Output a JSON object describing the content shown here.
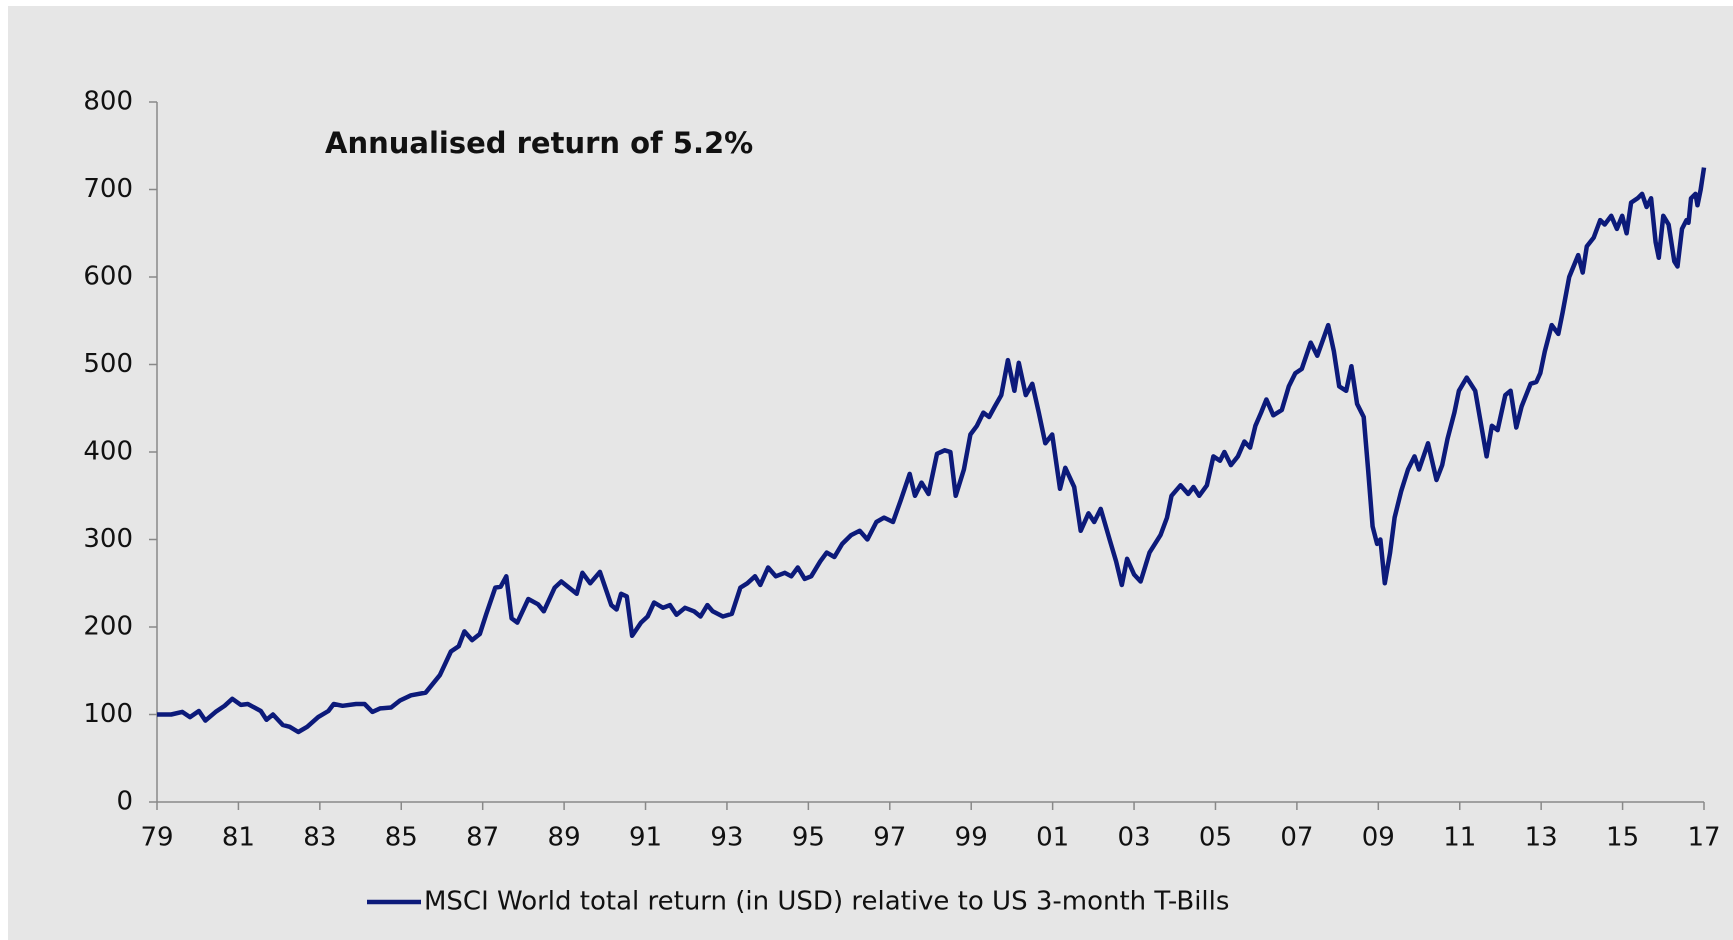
{
  "chart_data": {
    "type": "line",
    "annotation": "Annualised return of 5.2%",
    "x": [
      1979.0,
      1979.35,
      1979.62,
      1979.81,
      1980.03,
      1980.19,
      1980.44,
      1980.66,
      1980.85,
      1981.06,
      1981.23,
      1981.55,
      1981.69,
      1981.85,
      1982.09,
      1982.26,
      1982.47,
      1982.69,
      1982.96,
      1983.21,
      1983.34,
      1983.56,
      1983.89,
      1984.1,
      1984.29,
      1984.48,
      1984.75,
      1984.97,
      1985.24,
      1985.6,
      1985.95,
      1986.22,
      1986.41,
      1986.55,
      1986.74,
      1986.93,
      1987.09,
      1987.31,
      1987.44,
      1987.58,
      1987.71,
      1987.85,
      1988.12,
      1988.36,
      1988.5,
      1988.77,
      1988.93,
      1989.12,
      1989.31,
      1989.45,
      1989.64,
      1989.88,
      1990.16,
      1990.29,
      1990.4,
      1990.54,
      1990.67,
      1990.89,
      1991.05,
      1991.21,
      1991.43,
      1991.6,
      1991.76,
      1991.97,
      1992.19,
      1992.35,
      1992.52,
      1992.65,
      1992.9,
      1993.12,
      1993.33,
      1993.5,
      1993.69,
      1993.82,
      1994.01,
      1994.2,
      1994.42,
      1994.58,
      1994.74,
      1994.91,
      1995.07,
      1995.29,
      1995.45,
      1995.64,
      1995.83,
      1996.05,
      1996.26,
      1996.45,
      1996.67,
      1996.86,
      1997.08,
      1997.27,
      1997.49,
      1997.62,
      1997.78,
      1997.95,
      1998.16,
      1998.35,
      1998.49,
      1998.62,
      1998.82,
      1998.98,
      1999.14,
      1999.3,
      1999.44,
      1999.58,
      1999.74,
      1999.9,
      2000.06,
      2000.17,
      2000.34,
      2000.5,
      2000.66,
      2000.82,
      2000.99,
      2001.18,
      2001.31,
      2001.53,
      2001.69,
      2001.88,
      2002.02,
      2002.18,
      2002.4,
      2002.56,
      2002.7,
      2002.83,
      2003.0,
      2003.16,
      2003.38,
      2003.65,
      2003.81,
      2003.92,
      2004.14,
      2004.33,
      2004.46,
      2004.6,
      2004.79,
      2004.95,
      2005.11,
      2005.22,
      2005.38,
      2005.55,
      2005.71,
      2005.85,
      2005.98,
      2006.12,
      2006.25,
      2006.42,
      2006.63,
      2006.8,
      2006.96,
      2007.12,
      2007.34,
      2007.5,
      2007.77,
      2007.91,
      2008.04,
      2008.21,
      2008.34,
      2008.48,
      2008.64,
      2008.75,
      2008.86,
      2008.97,
      2009.05,
      2009.16,
      2009.29,
      2009.4,
      2009.56,
      2009.73,
      2009.89,
      2010.0,
      2010.22,
      2010.43,
      2010.57,
      2010.7,
      2010.87,
      2010.98,
      2011.17,
      2011.38,
      2011.66,
      2011.79,
      2011.93,
      2012.12,
      2012.25,
      2012.39,
      2012.52,
      2012.74,
      2012.88,
      2012.98,
      2013.09,
      2013.26,
      2013.42,
      2013.53,
      2013.69,
      2013.91,
      2014.02,
      2014.12,
      2014.29,
      2014.45,
      2014.56,
      2014.72,
      2014.86,
      2014.99,
      2015.1,
      2015.21,
      2015.37,
      2015.48,
      2015.59,
      2015.7,
      2015.81,
      2015.89,
      2016.0,
      2016.13,
      2016.27,
      2016.35,
      2016.46,
      2016.57,
      2016.62,
      2016.68,
      2016.79,
      2016.84,
      2016.92,
      2017.0
    ],
    "series": [
      {
        "name": "MSCI World total return (in USD) relative to US 3-month T-Bills",
        "color": "#0c1a7a",
        "values": [
          100,
          100,
          103,
          97,
          104,
          93,
          103,
          110,
          118,
          111,
          112,
          104,
          94,
          100,
          88,
          86,
          80,
          86,
          97,
          104,
          112,
          110,
          112,
          112,
          103,
          107,
          108,
          116,
          122,
          125,
          145,
          172,
          178,
          195,
          185,
          192,
          215,
          245,
          246,
          258,
          210,
          205,
          232,
          226,
          218,
          245,
          252,
          245,
          238,
          262,
          250,
          263,
          225,
          220,
          238,
          235,
          190,
          205,
          212,
          228,
          222,
          225,
          214,
          222,
          218,
          212,
          225,
          218,
          212,
          215,
          245,
          250,
          258,
          248,
          268,
          258,
          262,
          258,
          268,
          255,
          258,
          275,
          285,
          280,
          295,
          305,
          310,
          300,
          320,
          325,
          320,
          345,
          375,
          350,
          365,
          352,
          398,
          402,
          400,
          350,
          380,
          420,
          430,
          445,
          440,
          452,
          465,
          505,
          470,
          502,
          465,
          478,
          445,
          410,
          420,
          358,
          382,
          360,
          310,
          330,
          320,
          335,
          300,
          275,
          248,
          278,
          260,
          252,
          285,
          305,
          325,
          350,
          362,
          352,
          360,
          350,
          362,
          395,
          390,
          400,
          385,
          395,
          412,
          405,
          430,
          445,
          460,
          442,
          448,
          475,
          490,
          495,
          525,
          510,
          545,
          515,
          475,
          470,
          498,
          455,
          440,
          380,
          315,
          295,
          300,
          250,
          285,
          325,
          355,
          380,
          395,
          380,
          410,
          368,
          385,
          415,
          445,
          470,
          485,
          470,
          395,
          430,
          425,
          465,
          470,
          428,
          452,
          478,
          480,
          490,
          515,
          545,
          535,
          560,
          600,
          625,
          605,
          635,
          645,
          665,
          660,
          670,
          655,
          670,
          650,
          685,
          690,
          695,
          680,
          690,
          640,
          622,
          670,
          660,
          618,
          612,
          655,
          665,
          662,
          690,
          695,
          682,
          700,
          725
        ]
      }
    ],
    "xlim": [
      1979,
      2017
    ],
    "xticks": [
      {
        "value": 1979,
        "label": "79"
      },
      {
        "value": 1981,
        "label": "81"
      },
      {
        "value": 1983,
        "label": "83"
      },
      {
        "value": 1985,
        "label": "85"
      },
      {
        "value": 1987,
        "label": "87"
      },
      {
        "value": 1989,
        "label": "89"
      },
      {
        "value": 1991,
        "label": "91"
      },
      {
        "value": 1993,
        "label": "93"
      },
      {
        "value": 1995,
        "label": "95"
      },
      {
        "value": 1997,
        "label": "97"
      },
      {
        "value": 1999,
        "label": "99"
      },
      {
        "value": 2001,
        "label": "01"
      },
      {
        "value": 2003,
        "label": "03"
      },
      {
        "value": 2005,
        "label": "05"
      },
      {
        "value": 2007,
        "label": "07"
      },
      {
        "value": 2009,
        "label": "09"
      },
      {
        "value": 2011,
        "label": "11"
      },
      {
        "value": 2013,
        "label": "13"
      },
      {
        "value": 2015,
        "label": "15"
      },
      {
        "value": 2017,
        "label": "17"
      }
    ],
    "ylim": [
      0,
      800
    ],
    "yticks": [
      0,
      100,
      200,
      300,
      400,
      500,
      600,
      700,
      800
    ],
    "grid": false
  }
}
